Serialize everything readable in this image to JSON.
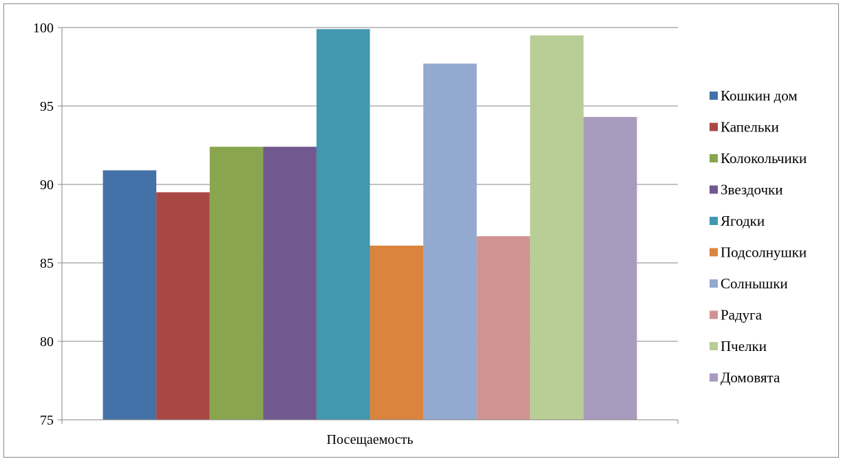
{
  "chart_data": {
    "type": "bar",
    "categories": [
      "Посещаемость"
    ],
    "series": [
      {
        "name": "Кошкин дом",
        "values": [
          90.9
        ],
        "color": "#4472A8"
      },
      {
        "name": "Капельки",
        "values": [
          89.5
        ],
        "color": "#A94744"
      },
      {
        "name": "Колокольчики",
        "values": [
          92.4
        ],
        "color": "#89A54E"
      },
      {
        "name": "Звездочки",
        "values": [
          92.4
        ],
        "color": "#71588F"
      },
      {
        "name": "Ягодки",
        "values": [
          99.9
        ],
        "color": "#4198AF"
      },
      {
        "name": "Подсолнушки",
        "values": [
          86.1
        ],
        "color": "#DB843D"
      },
      {
        "name": "Солнышки",
        "values": [
          97.7
        ],
        "color": "#93A9CF"
      },
      {
        "name": "Радуга",
        "values": [
          86.7
        ],
        "color": "#D19392"
      },
      {
        "name": "Пчелки",
        "values": [
          99.5
        ],
        "color": "#B9CD96"
      },
      {
        "name": "Домовята",
        "values": [
          94.3
        ],
        "color": "#A99BBD"
      }
    ],
    "ylim": [
      75,
      100
    ],
    "yticks": [
      "75",
      "80",
      "85",
      "90",
      "95",
      "100"
    ],
    "grid": true,
    "legend": "right"
  }
}
